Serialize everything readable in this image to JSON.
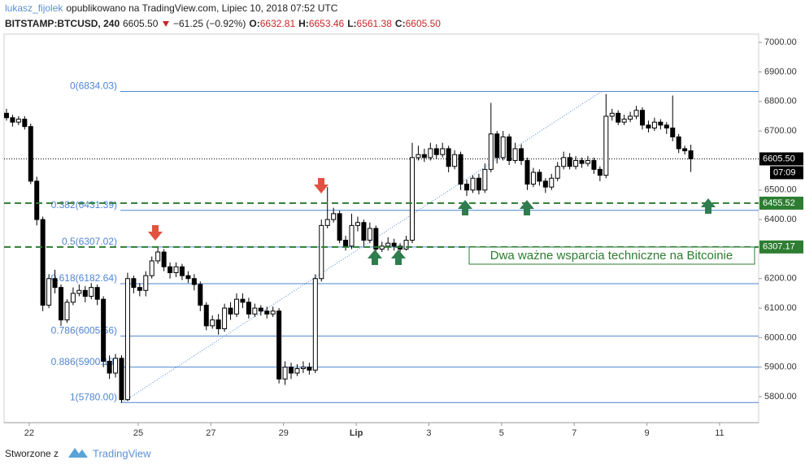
{
  "header": {
    "author": "lukasz_fijolek",
    "published": "opublikowano na TradingView.com, Lipiec 10, 2018 07:52 UTC",
    "symbol": "BITSTAMP:BTCUSD, 240",
    "last": "6605.50",
    "change": "−61.25 (−0.92%)",
    "ohlc": [
      {
        "label": "O:",
        "value": "6632.81"
      },
      {
        "label": "H:",
        "value": "6653.46"
      },
      {
        "label": "L:",
        "value": "6561.38"
      },
      {
        "label": "C:",
        "value": "6605.50"
      }
    ]
  },
  "chart_data": {
    "type": "candlestick",
    "bull_color": "#ffffff",
    "bear_color": "#000000",
    "xlim": [
      -0.4,
      124.2
    ],
    "xticks": [
      {
        "value": 3.75,
        "label": "22"
      },
      {
        "value": 21.75,
        "label": "25"
      },
      {
        "value": 33.75,
        "label": "27"
      },
      {
        "value": 45.75,
        "label": "29"
      },
      {
        "value": 57.75,
        "label": "Lip"
      },
      {
        "value": 69.75,
        "label": "3"
      },
      {
        "value": 81.75,
        "label": "5"
      },
      {
        "value": 93.75,
        "label": "7"
      },
      {
        "value": 105.75,
        "label": "9"
      },
      {
        "value": 117.75,
        "label": "11"
      }
    ],
    "ylim": [
      5712,
      7028
    ],
    "yticks": [
      {
        "value": 5800,
        "label": "5800.00"
      },
      {
        "value": 5900,
        "label": "5900.00"
      },
      {
        "value": 6000,
        "label": "6000.00"
      },
      {
        "value": 6100,
        "label": "6100.00"
      },
      {
        "value": 6200,
        "label": "6200.00"
      },
      {
        "value": 6400,
        "label": "6400.00"
      },
      {
        "value": 6500,
        "label": "6500.00"
      },
      {
        "value": 6700,
        "label": "6700.00"
      },
      {
        "value": 6800,
        "label": "6800.00"
      },
      {
        "value": 6900,
        "label": "6900.00"
      },
      {
        "value": 7000,
        "label": "7000.00"
      }
    ],
    "open": [
      6760,
      6745,
      6730,
      6740,
      6715,
      6530,
      6400,
      6110,
      6200,
      6170,
      6060,
      6120,
      6150,
      6160,
      6140,
      6170,
      6130,
      5920,
      5880,
      5930,
      5790,
      6200,
      6170,
      6160,
      6210,
      6260,
      6290,
      6240,
      6220,
      6240,
      6210,
      6200,
      6180,
      6110,
      6040,
      6060,
      6030,
      6100,
      6080,
      6130,
      6120,
      6080,
      6100,
      6090,
      6080,
      6090,
      5860,
      5900,
      5880,
      5895,
      5900,
      5890,
      6200,
      6380,
      6400,
      6420,
      6330,
      6310,
      6380,
      6390,
      6330,
      6370,
      6300,
      6310,
      6320,
      6310,
      6300,
      6330,
      6610,
      6620,
      6610,
      6640,
      6620,
      6640,
      6580,
      6620,
      6520,
      6500,
      6540,
      6500,
      6570,
      6690,
      6610,
      6680,
      6600,
      6640,
      6600,
      6520,
      6560,
      6530,
      6510,
      6540,
      6580,
      6610,
      6580,
      6600,
      6590,
      6600,
      6570,
      6550,
      6750,
      6760,
      6730,
      6740,
      6750,
      6770,
      6720,
      6710,
      6730,
      6720,
      6710,
      6680,
      6640,
      6632.81
    ],
    "high": [
      6775,
      6755,
      6750,
      6750,
      6725,
      6545,
      6410,
      6215,
      6230,
      6180,
      6130,
      6170,
      6180,
      6175,
      6185,
      6180,
      6140,
      5940,
      5945,
      5940,
      6220,
      6210,
      6185,
      6225,
      6275,
      6310,
      6300,
      6255,
      6255,
      6250,
      6225,
      6215,
      6190,
      6120,
      6075,
      6080,
      6115,
      6120,
      6150,
      6150,
      6135,
      6115,
      6110,
      6105,
      6105,
      6100,
      5920,
      5915,
      5910,
      5920,
      5915,
      6215,
      6400,
      6510,
      6440,
      6430,
      6345,
      6420,
      6410,
      6400,
      6390,
      6380,
      6325,
      6340,
      6335,
      6320,
      6345,
      6660,
      6650,
      6640,
      6660,
      6655,
      6660,
      6650,
      6635,
      6630,
      6535,
      6550,
      6555,
      6590,
      6795,
      6700,
      6700,
      6690,
      6660,
      6655,
      6610,
      6575,
      6570,
      6540,
      6555,
      6595,
      6630,
      6625,
      6615,
      6610,
      6615,
      6610,
      6580,
      6825,
      6775,
      6770,
      6755,
      6765,
      6785,
      6780,
      6735,
      6745,
      6740,
      6730,
      6820,
      6690,
      6650,
      6653.46
    ],
    "low": [
      6735,
      6715,
      6720,
      6705,
      6520,
      6380,
      6090,
      6100,
      6150,
      6040,
      6050,
      6110,
      6140,
      6120,
      6130,
      6110,
      5900,
      5860,
      5865,
      5780,
      5785,
      6150,
      6140,
      6140,
      6200,
      6250,
      6225,
      6200,
      6205,
      6195,
      6185,
      6160,
      6090,
      6025,
      6030,
      6010,
      6020,
      6060,
      6070,
      6100,
      6065,
      6070,
      6075,
      6065,
      6070,
      5845,
      5840,
      5860,
      5870,
      5880,
      5875,
      5880,
      6190,
      6370,
      6390,
      6320,
      6295,
      6300,
      6360,
      6310,
      6320,
      6285,
      6290,
      6295,
      6295,
      6290,
      6295,
      6320,
      6600,
      6595,
      6600,
      6605,
      6610,
      6560,
      6570,
      6500,
      6480,
      6490,
      6485,
      6490,
      6560,
      6590,
      6600,
      6585,
      6590,
      6585,
      6500,
      6510,
      6515,
      6490,
      6500,
      6530,
      6570,
      6570,
      6570,
      6575,
      6580,
      6555,
      6530,
      6540,
      6735,
      6720,
      6720,
      6730,
      6740,
      6705,
      6695,
      6700,
      6705,
      6690,
      6665,
      6625,
      6620,
      6561.38
    ],
    "close": [
      6745,
      6730,
      6740,
      6715,
      6530,
      6400,
      6110,
      6200,
      6170,
      6060,
      6120,
      6150,
      6160,
      6140,
      6170,
      6130,
      5920,
      5880,
      5930,
      5790,
      6200,
      6170,
      6160,
      6210,
      6260,
      6290,
      6240,
      6220,
      6240,
      6210,
      6200,
      6180,
      6110,
      6040,
      6060,
      6030,
      6100,
      6080,
      6130,
      6120,
      6080,
      6100,
      6090,
      6080,
      6090,
      5860,
      5900,
      5880,
      5895,
      5900,
      5890,
      6200,
      6380,
      6400,
      6420,
      6330,
      6310,
      6380,
      6390,
      6330,
      6370,
      6300,
      6310,
      6320,
      6310,
      6300,
      6330,
      6610,
      6620,
      6610,
      6640,
      6620,
      6640,
      6580,
      6620,
      6520,
      6500,
      6540,
      6500,
      6570,
      6690,
      6610,
      6680,
      6600,
      6640,
      6600,
      6520,
      6560,
      6530,
      6510,
      6540,
      6580,
      6610,
      6580,
      6600,
      6590,
      6600,
      6570,
      6550,
      6750,
      6760,
      6730,
      6740,
      6750,
      6770,
      6720,
      6710,
      6730,
      6720,
      6710,
      6680,
      6640,
      6632.81,
      6605.5
    ],
    "fib_color": "#4f86d4",
    "fib_levels": [
      {
        "value": 6834.03,
        "label": "0(6834.03)"
      },
      {
        "value": 6431.39,
        "label": "0.382(6431.39)"
      },
      {
        "value": 6307.02,
        "label": "0.5(6307.02)"
      },
      {
        "value": 6182.64,
        "label": "0.618(6182.64)"
      },
      {
        "value": 6005.56,
        "label": "0.786(6005.56)"
      },
      {
        "value": 5900.18,
        "label": "0.886(5900.18)"
      },
      {
        "value": 5780.0,
        "label": "1(5780.00)"
      }
    ],
    "support_color": "#2e7d32",
    "support_lines": [
      {
        "value": 6455.52,
        "label": "6455.52"
      },
      {
        "value": 6307.17,
        "label": "6307.17"
      }
    ],
    "last_price": {
      "value": 6605.5,
      "label": "6605.50",
      "countdown": "07:09"
    },
    "annotation": "Dwa ważne wsparcia techniczne na Bitcoinie"
  },
  "footer": {
    "made_with": "Stworzone z",
    "brand": "TradingView"
  }
}
